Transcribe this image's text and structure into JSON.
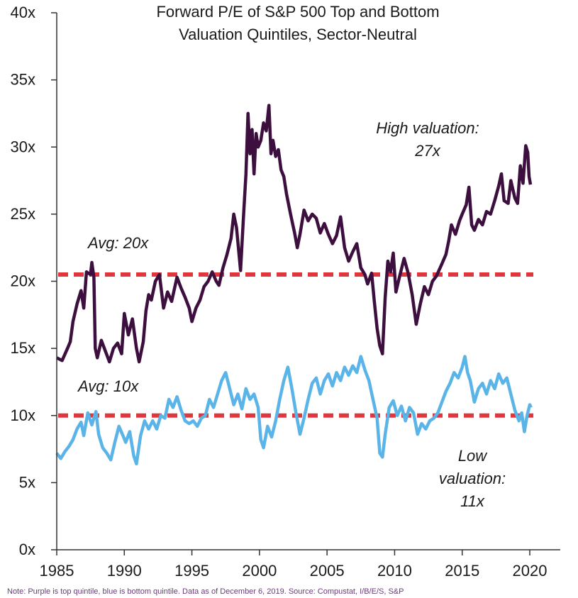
{
  "chart_data": {
    "type": "line",
    "title_lines": [
      "Forward P/E of S&P 500 Top and Bottom",
      "Valuation Quintiles, Sector-Neutral"
    ],
    "xlabel": "",
    "ylabel": "",
    "xlim": [
      1985,
      2020.8
    ],
    "ylim": [
      0,
      40
    ],
    "x_ticks": [
      1985,
      1990,
      1995,
      2000,
      2005,
      2010,
      2015,
      2020
    ],
    "x_tick_labels": [
      "1985",
      "1990",
      "1995",
      "2000",
      "2005",
      "2010",
      "2015",
      "2020"
    ],
    "y_ticks": [
      0,
      5,
      10,
      15,
      20,
      25,
      30,
      35,
      40
    ],
    "y_tick_labels": [
      "0x",
      "5x",
      "10x",
      "15x",
      "20x",
      "25x",
      "30x",
      "35x",
      "40x"
    ],
    "grid": false,
    "series": [
      {
        "color": "#3d0f3e",
        "points": [
          [
            1985.0,
            14.3
          ],
          [
            1985.4,
            14.1
          ],
          [
            1985.8,
            15.0
          ],
          [
            1986.0,
            15.5
          ],
          [
            1986.2,
            17.0
          ],
          [
            1986.5,
            18.3
          ],
          [
            1986.8,
            19.3
          ],
          [
            1987.0,
            18.0
          ],
          [
            1987.2,
            20.7
          ],
          [
            1987.5,
            20.5
          ],
          [
            1987.6,
            21.4
          ],
          [
            1987.75,
            20.3
          ],
          [
            1987.85,
            15.0
          ],
          [
            1988.0,
            14.3
          ],
          [
            1988.3,
            15.6
          ],
          [
            1988.6,
            14.8
          ],
          [
            1988.9,
            14.0
          ],
          [
            1989.2,
            15.0
          ],
          [
            1989.5,
            15.4
          ],
          [
            1989.8,
            14.6
          ],
          [
            1990.0,
            17.6
          ],
          [
            1990.3,
            16.0
          ],
          [
            1990.6,
            17.2
          ],
          [
            1990.9,
            15.0
          ],
          [
            1991.1,
            14.0
          ],
          [
            1991.4,
            15.5
          ],
          [
            1991.6,
            17.8
          ],
          [
            1991.8,
            19.0
          ],
          [
            1992.0,
            18.6
          ],
          [
            1992.3,
            20.0
          ],
          [
            1992.6,
            20.5
          ],
          [
            1992.9,
            18.0
          ],
          [
            1993.2,
            19.2
          ],
          [
            1993.5,
            18.5
          ],
          [
            1993.9,
            20.3
          ],
          [
            1994.2,
            19.5
          ],
          [
            1994.5,
            18.8
          ],
          [
            1994.8,
            18.0
          ],
          [
            1995.0,
            17.0
          ],
          [
            1995.3,
            18.0
          ],
          [
            1995.6,
            18.6
          ],
          [
            1995.9,
            19.6
          ],
          [
            1996.2,
            20.0
          ],
          [
            1996.5,
            20.7
          ],
          [
            1996.8,
            20.0
          ],
          [
            1997.0,
            19.7
          ],
          [
            1997.3,
            21.0
          ],
          [
            1997.6,
            22.0
          ],
          [
            1997.9,
            23.2
          ],
          [
            1998.1,
            25.0
          ],
          [
            1998.3,
            24.0
          ],
          [
            1998.6,
            20.8
          ],
          [
            1998.8,
            24.5
          ],
          [
            1999.0,
            28.0
          ],
          [
            1999.15,
            32.5
          ],
          [
            1999.3,
            29.5
          ],
          [
            1999.45,
            31.3
          ],
          [
            1999.6,
            28.0
          ],
          [
            1999.75,
            31.0
          ],
          [
            1999.9,
            30.0
          ],
          [
            2000.1,
            30.5
          ],
          [
            2000.3,
            31.8
          ],
          [
            2000.5,
            31.2
          ],
          [
            2000.7,
            33.1
          ],
          [
            2000.85,
            29.5
          ],
          [
            2001.0,
            30.5
          ],
          [
            2001.2,
            29.3
          ],
          [
            2001.4,
            29.8
          ],
          [
            2001.6,
            28.3
          ],
          [
            2001.8,
            27.8
          ],
          [
            2002.0,
            26.5
          ],
          [
            2002.3,
            25.0
          ],
          [
            2002.6,
            23.6
          ],
          [
            2002.8,
            22.5
          ],
          [
            2003.0,
            23.5
          ],
          [
            2003.3,
            25.3
          ],
          [
            2003.6,
            24.5
          ],
          [
            2003.9,
            25.0
          ],
          [
            2004.2,
            24.7
          ],
          [
            2004.5,
            23.6
          ],
          [
            2004.8,
            24.3
          ],
          [
            2005.1,
            23.5
          ],
          [
            2005.4,
            22.8
          ],
          [
            2005.7,
            23.4
          ],
          [
            2006.0,
            24.8
          ],
          [
            2006.3,
            22.5
          ],
          [
            2006.6,
            21.5
          ],
          [
            2006.9,
            22.2
          ],
          [
            2007.2,
            22.8
          ],
          [
            2007.5,
            21.0
          ],
          [
            2007.8,
            20.5
          ],
          [
            2008.0,
            19.8
          ],
          [
            2008.3,
            20.6
          ],
          [
            2008.5,
            18.5
          ],
          [
            2008.7,
            16.5
          ],
          [
            2008.9,
            15.2
          ],
          [
            2009.1,
            14.6
          ],
          [
            2009.3,
            18.8
          ],
          [
            2009.5,
            21.5
          ],
          [
            2009.7,
            20.7
          ],
          [
            2009.9,
            22.1
          ],
          [
            2010.1,
            19.2
          ],
          [
            2010.4,
            20.5
          ],
          [
            2010.7,
            21.7
          ],
          [
            2011.0,
            20.6
          ],
          [
            2011.3,
            19.0
          ],
          [
            2011.6,
            16.8
          ],
          [
            2011.9,
            18.3
          ],
          [
            2012.2,
            19.6
          ],
          [
            2012.5,
            19.0
          ],
          [
            2012.8,
            20.0
          ],
          [
            2013.1,
            20.4
          ],
          [
            2013.5,
            21.3
          ],
          [
            2013.8,
            22.0
          ],
          [
            2014.0,
            23.0
          ],
          [
            2014.2,
            24.2
          ],
          [
            2014.5,
            23.5
          ],
          [
            2014.8,
            24.5
          ],
          [
            2015.0,
            25.0
          ],
          [
            2015.3,
            25.7
          ],
          [
            2015.5,
            27.0
          ],
          [
            2015.7,
            24.2
          ],
          [
            2015.9,
            23.8
          ],
          [
            2016.2,
            24.6
          ],
          [
            2016.5,
            24.2
          ],
          [
            2016.8,
            25.2
          ],
          [
            2017.1,
            25.0
          ],
          [
            2017.4,
            26.0
          ],
          [
            2017.7,
            27.1
          ],
          [
            2017.9,
            28.0
          ],
          [
            2018.1,
            26.0
          ],
          [
            2018.4,
            25.8
          ],
          [
            2018.6,
            27.5
          ],
          [
            2018.9,
            26.2
          ],
          [
            2019.1,
            25.8
          ],
          [
            2019.3,
            28.6
          ],
          [
            2019.5,
            27.3
          ],
          [
            2019.7,
            30.1
          ],
          [
            2019.85,
            29.6
          ],
          [
            2019.95,
            27.8
          ],
          [
            2020.05,
            27.2
          ]
        ]
      },
      {
        "color": "#5ab4e8",
        "points": [
          [
            1985.0,
            7.2
          ],
          [
            1985.3,
            6.8
          ],
          [
            1985.6,
            7.3
          ],
          [
            1985.9,
            7.7
          ],
          [
            1986.2,
            8.2
          ],
          [
            1986.5,
            9.0
          ],
          [
            1986.8,
            9.5
          ],
          [
            1987.0,
            8.5
          ],
          [
            1987.3,
            10.2
          ],
          [
            1987.6,
            9.3
          ],
          [
            1987.9,
            10.3
          ],
          [
            1988.1,
            8.6
          ],
          [
            1988.4,
            7.6
          ],
          [
            1988.7,
            7.2
          ],
          [
            1989.0,
            6.7
          ],
          [
            1989.3,
            8.0
          ],
          [
            1989.6,
            9.2
          ],
          [
            1989.9,
            8.5
          ],
          [
            1990.1,
            8.0
          ],
          [
            1990.4,
            8.8
          ],
          [
            1990.7,
            7.0
          ],
          [
            1990.9,
            6.4
          ],
          [
            1991.2,
            8.5
          ],
          [
            1991.5,
            9.6
          ],
          [
            1991.8,
            9.0
          ],
          [
            1992.1,
            9.6
          ],
          [
            1992.4,
            9.0
          ],
          [
            1992.7,
            10.0
          ],
          [
            1993.0,
            9.8
          ],
          [
            1993.3,
            11.2
          ],
          [
            1993.6,
            10.6
          ],
          [
            1993.9,
            11.4
          ],
          [
            1994.2,
            10.4
          ],
          [
            1994.5,
            9.6
          ],
          [
            1994.8,
            9.4
          ],
          [
            1995.1,
            9.6
          ],
          [
            1995.4,
            9.2
          ],
          [
            1995.7,
            9.8
          ],
          [
            1996.0,
            10.0
          ],
          [
            1996.3,
            11.2
          ],
          [
            1996.6,
            10.6
          ],
          [
            1996.9,
            11.6
          ],
          [
            1997.2,
            12.6
          ],
          [
            1997.5,
            13.2
          ],
          [
            1997.8,
            12.0
          ],
          [
            1998.1,
            10.8
          ],
          [
            1998.4,
            11.6
          ],
          [
            1998.7,
            10.5
          ],
          [
            1999.0,
            12.0
          ],
          [
            1999.3,
            11.2
          ],
          [
            1999.6,
            11.6
          ],
          [
            1999.9,
            10.6
          ],
          [
            2000.1,
            8.2
          ],
          [
            2000.3,
            7.6
          ],
          [
            2000.6,
            9.2
          ],
          [
            2000.9,
            8.4
          ],
          [
            2001.2,
            9.6
          ],
          [
            2001.5,
            11.2
          ],
          [
            2001.8,
            12.6
          ],
          [
            2002.1,
            13.6
          ],
          [
            2002.4,
            12.0
          ],
          [
            2002.7,
            10.2
          ],
          [
            2003.0,
            8.6
          ],
          [
            2003.3,
            9.8
          ],
          [
            2003.6,
            11.2
          ],
          [
            2003.9,
            12.4
          ],
          [
            2004.2,
            12.8
          ],
          [
            2004.5,
            11.6
          ],
          [
            2004.8,
            12.6
          ],
          [
            2005.1,
            13.1
          ],
          [
            2005.4,
            12.2
          ],
          [
            2005.7,
            13.2
          ],
          [
            2006.0,
            12.6
          ],
          [
            2006.3,
            13.6
          ],
          [
            2006.6,
            13.0
          ],
          [
            2006.9,
            13.7
          ],
          [
            2007.2,
            13.2
          ],
          [
            2007.5,
            14.4
          ],
          [
            2007.8,
            13.4
          ],
          [
            2008.1,
            12.6
          ],
          [
            2008.4,
            11.2
          ],
          [
            2008.7,
            9.8
          ],
          [
            2008.9,
            7.2
          ],
          [
            2009.1,
            6.9
          ],
          [
            2009.3,
            8.6
          ],
          [
            2009.6,
            10.6
          ],
          [
            2009.9,
            11.1
          ],
          [
            2010.2,
            10.0
          ],
          [
            2010.5,
            10.7
          ],
          [
            2010.8,
            9.6
          ],
          [
            2011.1,
            10.6
          ],
          [
            2011.4,
            10.2
          ],
          [
            2011.7,
            8.6
          ],
          [
            2012.0,
            9.4
          ],
          [
            2012.3,
            9.0
          ],
          [
            2012.6,
            9.6
          ],
          [
            2012.9,
            9.8
          ],
          [
            2013.2,
            10.2
          ],
          [
            2013.5,
            11.0
          ],
          [
            2013.8,
            11.8
          ],
          [
            2014.1,
            12.4
          ],
          [
            2014.4,
            13.2
          ],
          [
            2014.7,
            12.8
          ],
          [
            2015.0,
            13.6
          ],
          [
            2015.2,
            14.4
          ],
          [
            2015.4,
            13.2
          ],
          [
            2015.6,
            12.6
          ],
          [
            2015.9,
            11.0
          ],
          [
            2016.2,
            12.0
          ],
          [
            2016.5,
            12.4
          ],
          [
            2016.8,
            11.6
          ],
          [
            2017.1,
            12.6
          ],
          [
            2017.4,
            12.0
          ],
          [
            2017.7,
            13.1
          ],
          [
            2018.0,
            12.4
          ],
          [
            2018.3,
            12.8
          ],
          [
            2018.6,
            11.6
          ],
          [
            2018.9,
            10.4
          ],
          [
            2019.2,
            9.6
          ],
          [
            2019.4,
            10.2
          ],
          [
            2019.6,
            8.8
          ],
          [
            2019.8,
            10.0
          ],
          [
            2020.0,
            10.8
          ],
          [
            2020.1,
            10.6
          ]
        ]
      }
    ],
    "reference_lines": [
      {
        "y": 20.5,
        "color": "#e2363d",
        "style": "dashed"
      },
      {
        "y": 10.0,
        "color": "#e2363d",
        "style": "dashed"
      }
    ],
    "annotations": [
      {
        "lines": [
          "Avg: 20x"
        ]
      },
      {
        "lines": [
          "Avg: 10x"
        ]
      },
      {
        "lines": [
          "High valuation:",
          "27x"
        ]
      },
      {
        "lines": [
          "Low",
          "valuation:",
          "11x"
        ]
      }
    ]
  },
  "footnote": "Note: Purple is top quintile, blue is bottom quintile. Data as of December 6, 2019. Source: Compustat, I/B/E/S, S&P"
}
